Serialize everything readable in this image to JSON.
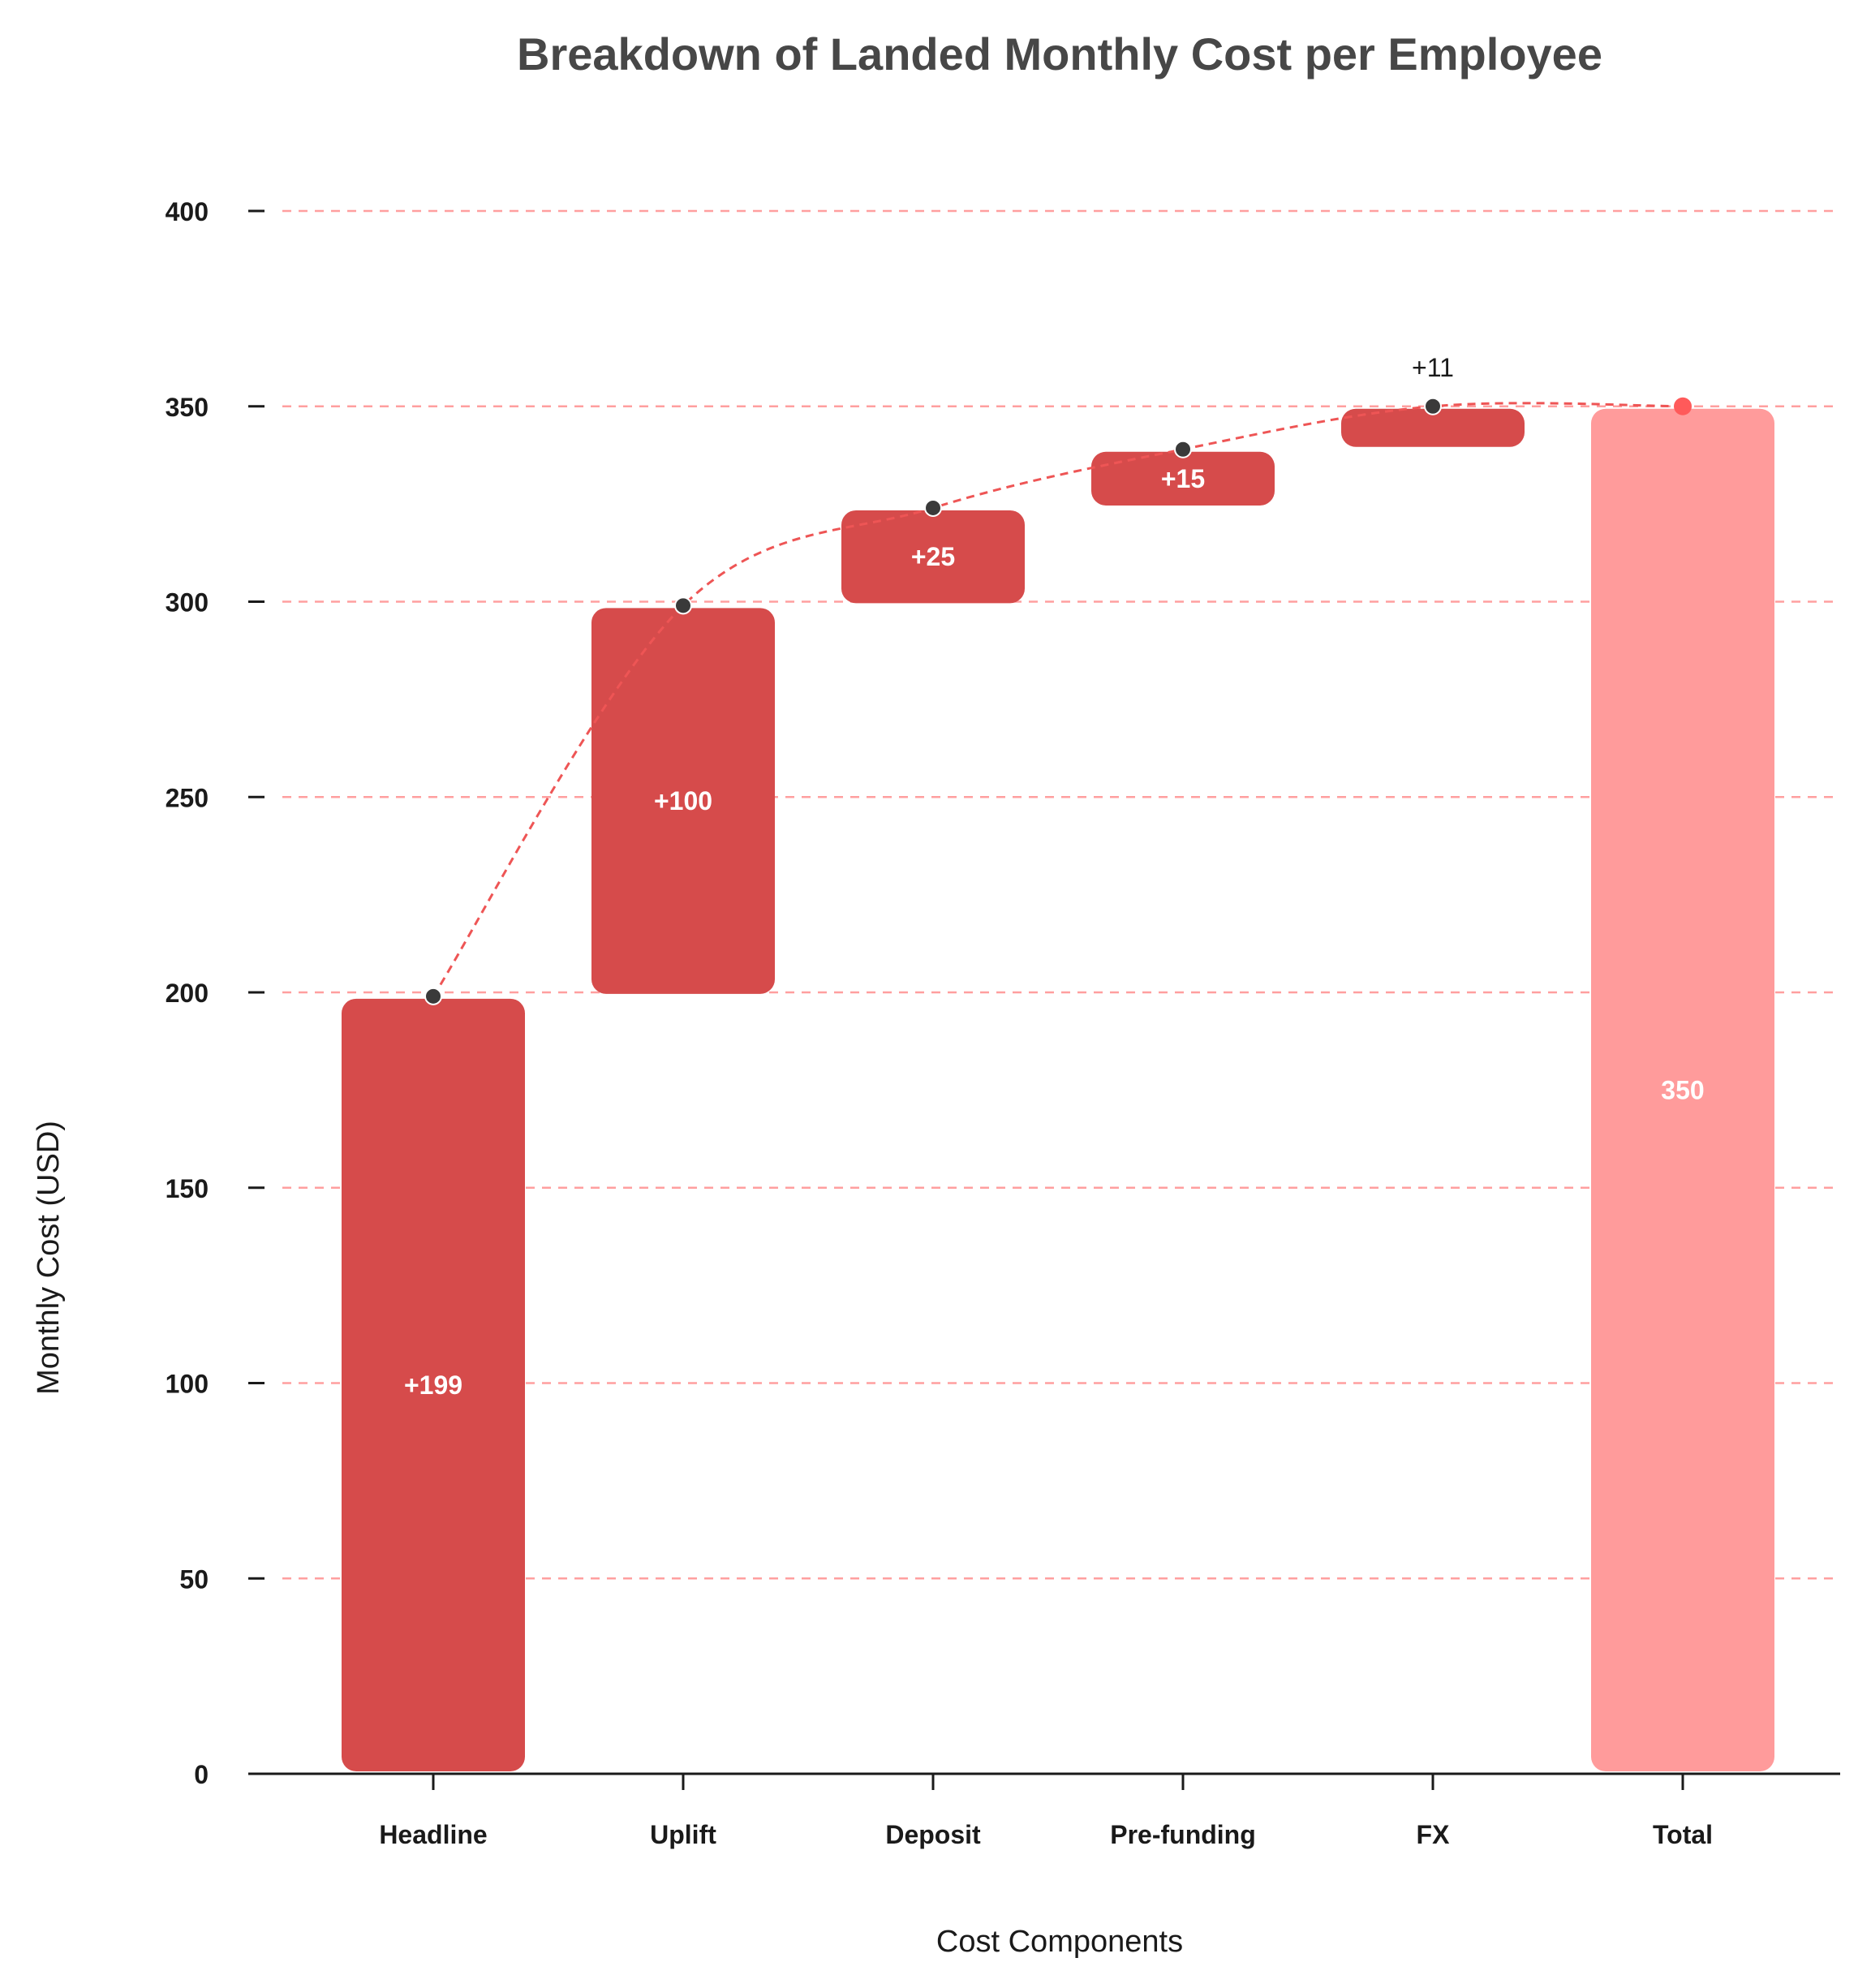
{
  "chart_data": {
    "type": "bar",
    "subtype": "waterfall",
    "title": "Breakdown of Landed Monthly Cost per Employee",
    "xlabel": "Cost Components",
    "ylabel": "Monthly Cost (USD)",
    "ylim": [
      0,
      400
    ],
    "yticks": [
      0,
      50,
      100,
      150,
      200,
      250,
      300,
      350,
      400
    ],
    "grid": true,
    "legend": "none",
    "categories": [
      "Headline",
      "Uplift",
      "Deposit",
      "Pre-funding",
      "FX",
      "Total"
    ],
    "values": [
      199,
      100,
      25,
      15,
      11,
      350
    ],
    "cumulative": [
      199,
      299,
      324,
      339,
      350,
      350
    ],
    "data_labels": [
      "+199",
      "+100",
      "+25",
      "+15",
      "+11",
      "350"
    ],
    "colors": {
      "increment": "#d64b4b",
      "total": "#ff9b9b",
      "connector": "#ee5555",
      "grid": "#ff9f9f",
      "point": "#3a3a3a",
      "total_point": "#ff5a5a",
      "title": "#474747",
      "axis": "#1a1a1a"
    }
  }
}
